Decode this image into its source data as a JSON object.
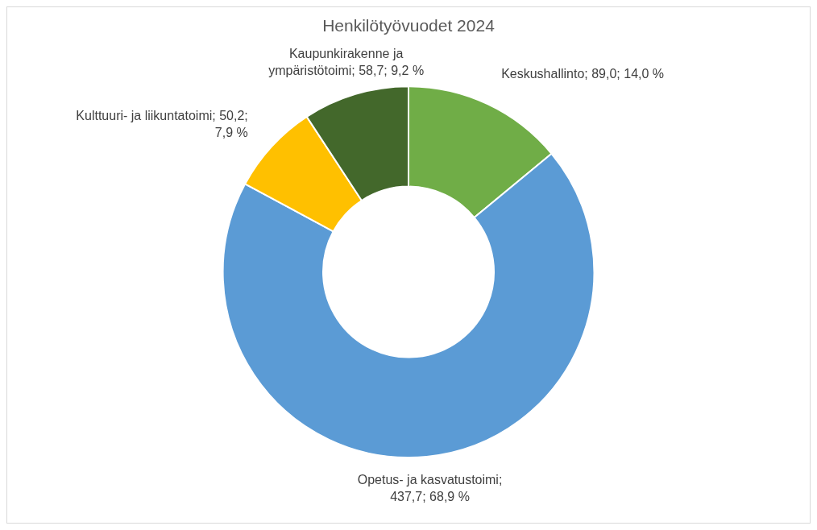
{
  "chart_data": {
    "type": "donut",
    "title": "Henkilötyövuodet 2024",
    "categories": [
      "Keskushallinto",
      "Opetus- ja kasvatustoimi",
      "Kulttuuri- ja liikuntatoimi",
      "Kaupunkirakenne ja ympäristötoimi"
    ],
    "values": [
      89.0,
      437.7,
      50.2,
      58.7
    ],
    "value_labels": [
      "; 89,0; 14,0 %",
      "; 437,7; 68,9 %",
      "; 50,2; 7,9 %",
      "; 58,7; 9,2 %"
    ],
    "colors": [
      "#70ad47",
      "#5b9bd5",
      "#ffc000",
      "#43682b"
    ],
    "legend": false
  }
}
